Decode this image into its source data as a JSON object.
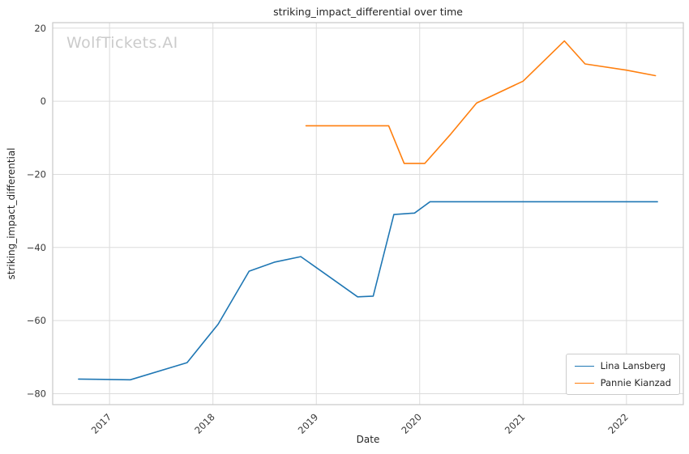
{
  "watermark": {
    "text": "WolfTickets.AI"
  },
  "chart_data": {
    "type": "line",
    "title": "striking_impact_differential over time",
    "xlabel": "Date",
    "ylabel": "striking_impact_differential",
    "xlim": [
      2016.45,
      2022.55
    ],
    "ylim": [
      -83,
      21.5
    ],
    "xticks": [
      2017,
      2018,
      2019,
      2020,
      2021,
      2022
    ],
    "xtick_labels": [
      "2017",
      "2018",
      "2019",
      "2020",
      "2021",
      "2022"
    ],
    "yticks": [
      -80,
      -60,
      -40,
      -20,
      0,
      20
    ],
    "ytick_labels": [
      "−80",
      "−60",
      "−40",
      "−20",
      "0",
      "20"
    ],
    "grid": true,
    "legend_position": "lower right",
    "series": [
      {
        "name": "Lina Lansberg",
        "color": "#1f77b4",
        "points": [
          [
            2016.7,
            -76.0
          ],
          [
            2017.2,
            -76.2
          ],
          [
            2017.75,
            -71.5
          ],
          [
            2018.05,
            -61.0
          ],
          [
            2018.35,
            -46.5
          ],
          [
            2018.6,
            -44.0
          ],
          [
            2018.85,
            -42.5
          ],
          [
            2019.1,
            -47.5
          ],
          [
            2019.4,
            -53.5
          ],
          [
            2019.55,
            -53.3
          ],
          [
            2019.75,
            -31.0
          ],
          [
            2019.95,
            -30.6
          ],
          [
            2020.1,
            -27.5
          ],
          [
            2020.6,
            -27.5
          ],
          [
            2021.0,
            -27.5
          ],
          [
            2021.5,
            -27.5
          ],
          [
            2022.0,
            -27.5
          ],
          [
            2022.3,
            -27.5
          ]
        ]
      },
      {
        "name": "Pannie Kianzad",
        "color": "#ff7f0e",
        "points": [
          [
            2018.9,
            -6.7
          ],
          [
            2019.3,
            -6.7
          ],
          [
            2019.7,
            -6.7
          ],
          [
            2019.85,
            -17.0
          ],
          [
            2020.05,
            -17.0
          ],
          [
            2020.3,
            -9.0
          ],
          [
            2020.55,
            -0.5
          ],
          [
            2021.0,
            5.5
          ],
          [
            2021.4,
            16.5
          ],
          [
            2021.6,
            10.2
          ],
          [
            2022.0,
            8.5
          ],
          [
            2022.28,
            7.0
          ]
        ]
      }
    ]
  }
}
